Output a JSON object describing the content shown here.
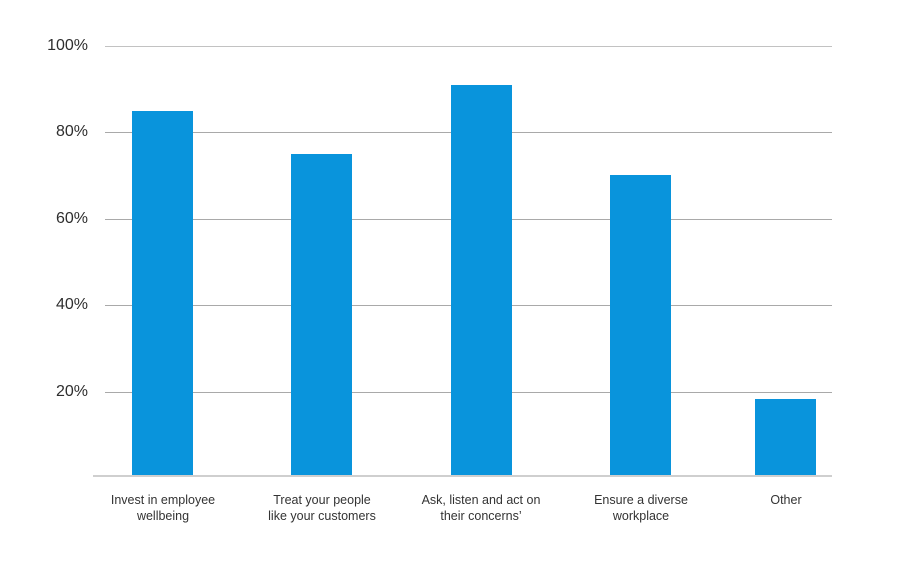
{
  "chart_data": {
    "type": "bar",
    "title": "",
    "xlabel": "",
    "ylabel": "",
    "categories": [
      "Invest in employee wellbeing",
      "Treat your people like your customers",
      "Ask, listen and act on their concerns’",
      "Ensure a diverse workplace",
      "Other"
    ],
    "category_display": [
      "Invest in employee\nwellbeing",
      "Treat your people\nlike your customers",
      "Ask, listen and act on\ntheir concerns’",
      "Ensure a diverse\nworkplace",
      "Other"
    ],
    "values": [
      85,
      75,
      91,
      70,
      18
    ],
    "unit": "%",
    "ylim": [
      0,
      100
    ],
    "ytick_labels": [
      "100%",
      "80%",
      "60%",
      "40%",
      "20%"
    ],
    "grid": true,
    "legend_position": "none",
    "bar_color": "#0994dc",
    "gridline_color": "#a9a9a9",
    "axis_line_color": "#cfcfcf",
    "label_color": "#333333"
  }
}
